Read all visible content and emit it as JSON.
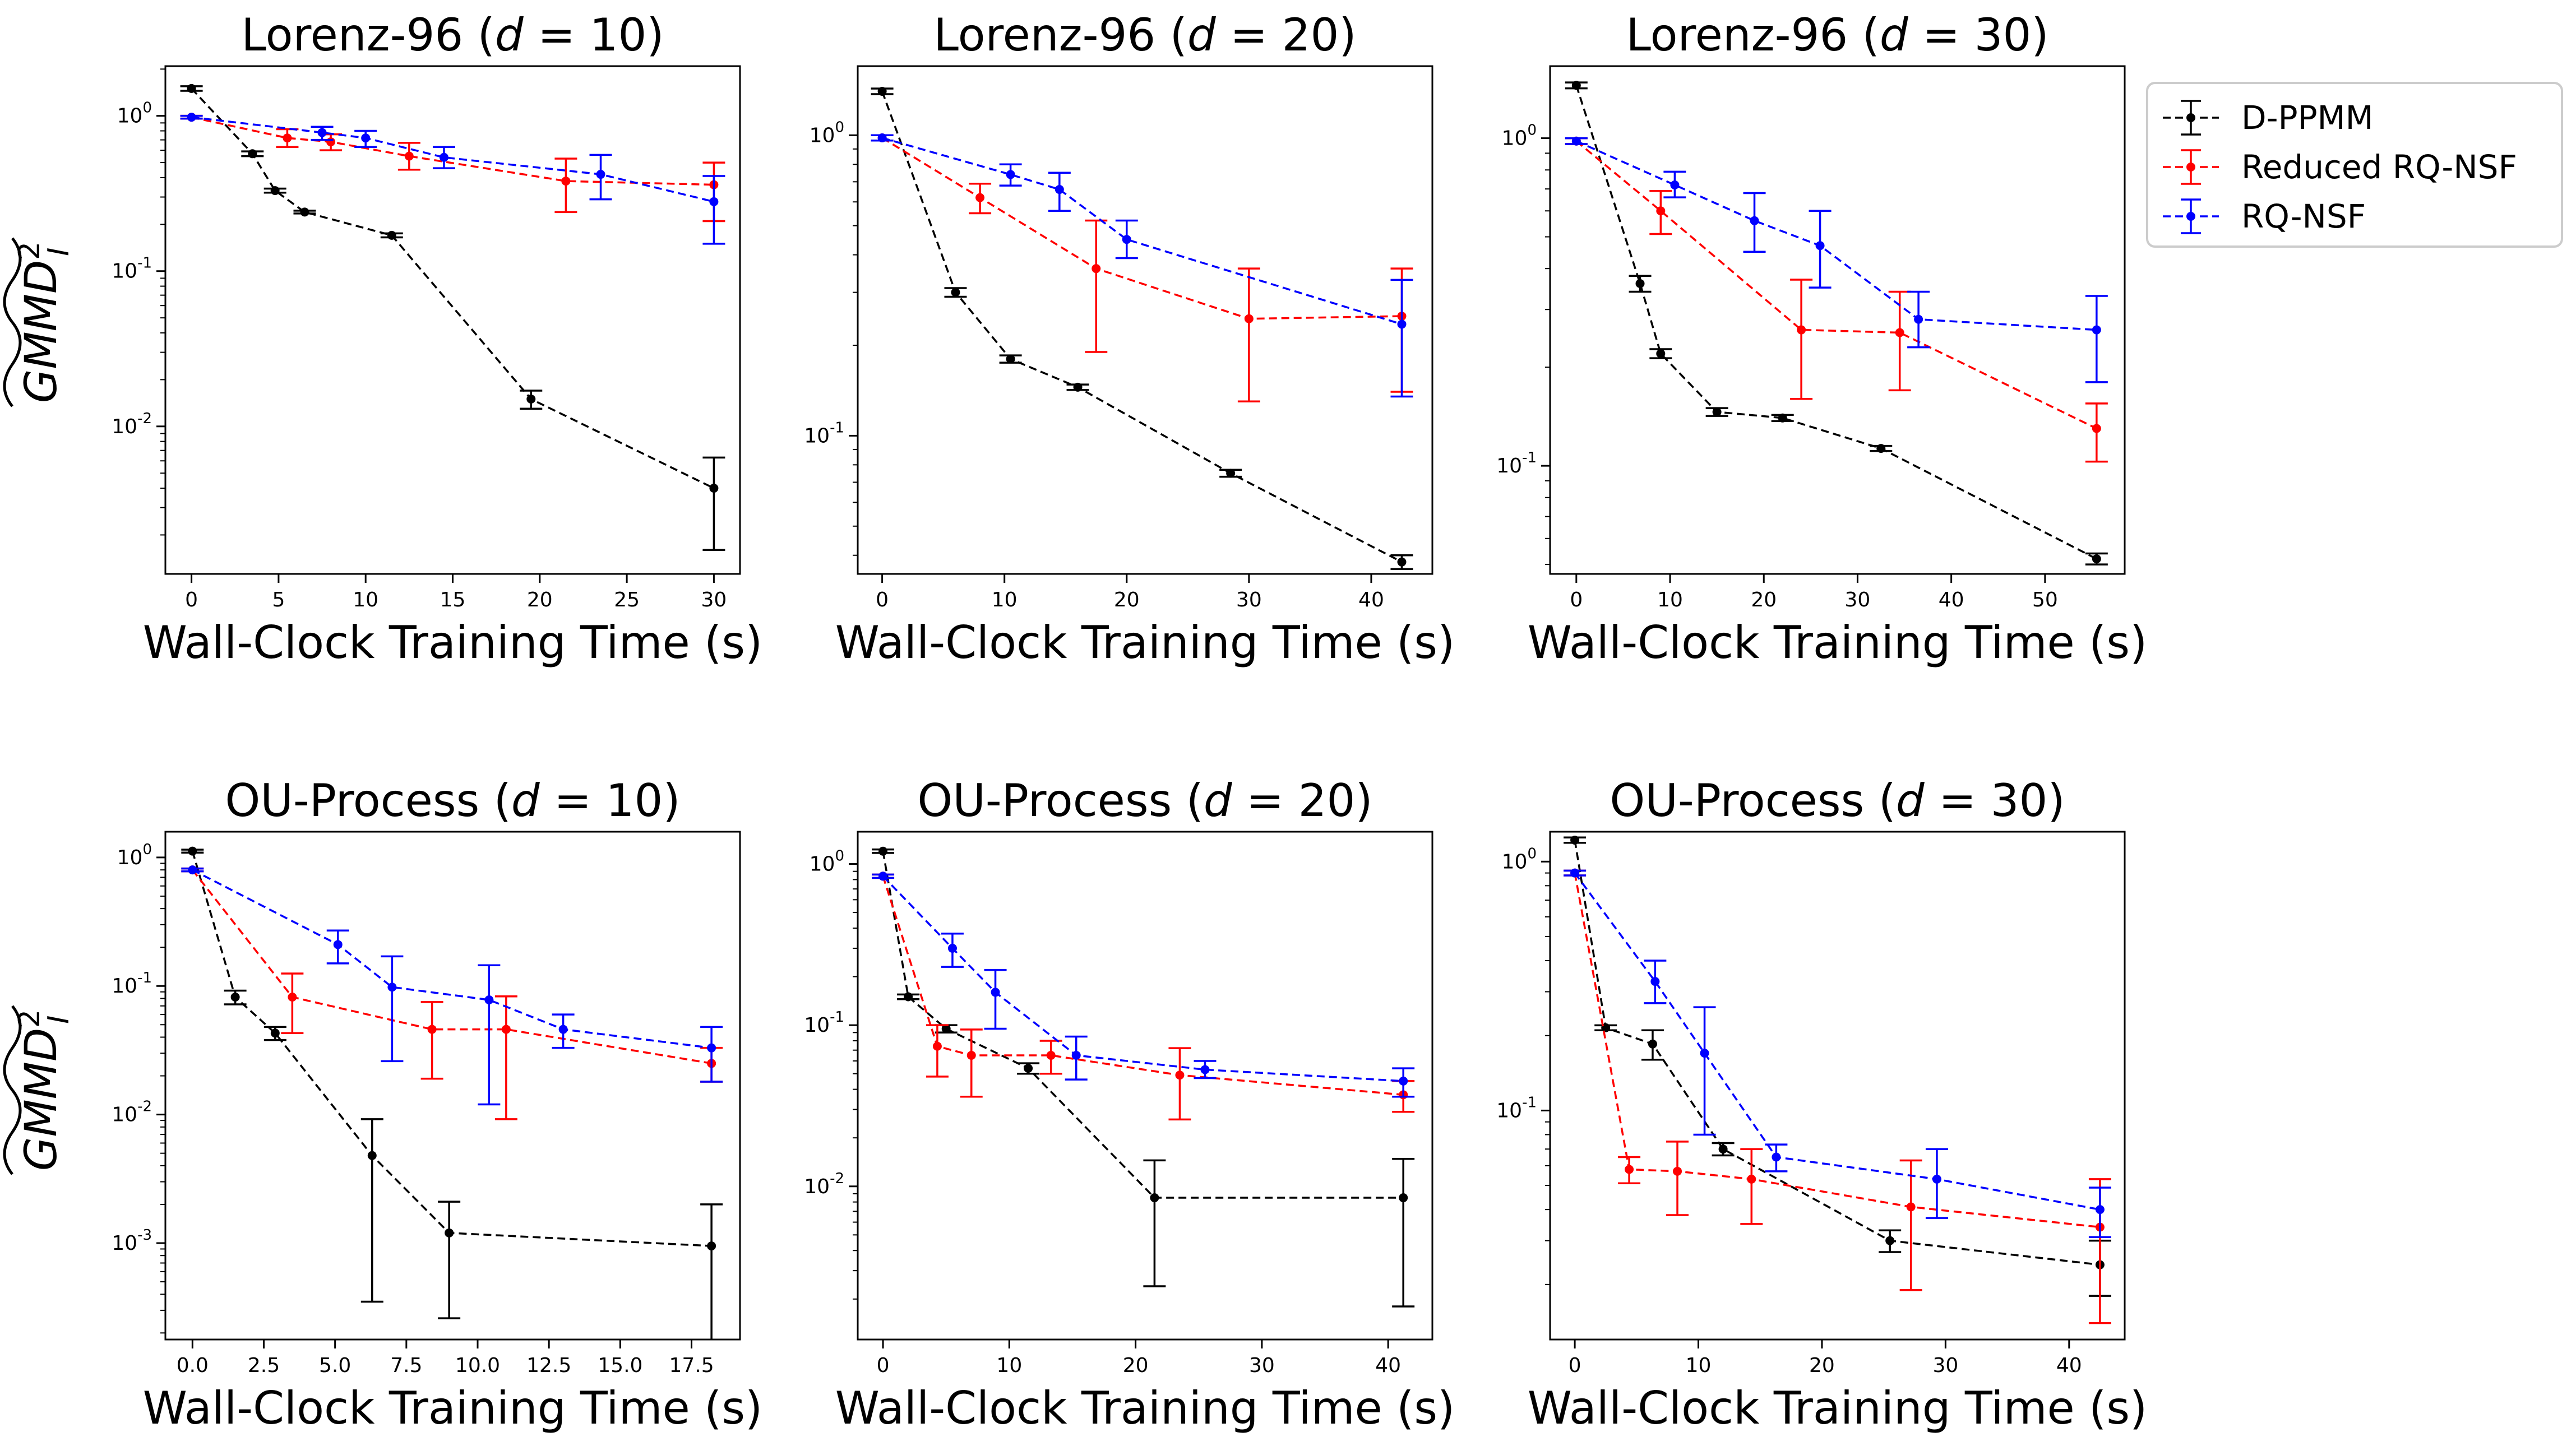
{
  "figure": {
    "ylabel": "GMMD²_I (tilde)",
    "legend": {
      "placement": "right of top-right panel",
      "entries": [
        {
          "name": "D-PPMM",
          "color": "#000000"
        },
        {
          "name": "Reduced RQ-NSF",
          "color": "#ff0000"
        },
        {
          "name": "RQ-NSF",
          "color": "#0000ff"
        }
      ]
    }
  },
  "chart_data": [
    {
      "type": "line",
      "title_prefix": "Lorenz-96",
      "title_suffix": "10",
      "xlabel": "Wall-Clock Training Time (s)",
      "xlim": [
        -1.5,
        31.5
      ],
      "xticks": [
        0,
        5,
        10,
        15,
        20,
        25,
        30
      ],
      "xtick_labels": [
        "0",
        "5",
        "10",
        "15",
        "20",
        "25",
        "30"
      ],
      "ylim_log10": [
        -2.95,
        0.32
      ],
      "yticks_exp": [
        -2,
        -1,
        0
      ],
      "series": [
        {
          "name": "D-PPMM",
          "color": "#000000",
          "x": [
            0,
            3.5,
            4.8,
            6.5,
            11.5,
            19.5,
            30
          ],
          "y": [
            1.5,
            0.57,
            0.33,
            0.24,
            0.17,
            0.015,
            0.004
          ],
          "err_lo": [
            1.45,
            0.55,
            0.32,
            0.235,
            0.165,
            0.013,
            0.0016
          ],
          "err_hi": [
            1.55,
            0.59,
            0.34,
            0.245,
            0.175,
            0.017,
            0.0063
          ]
        },
        {
          "name": "Reduced RQ-NSF",
          "color": "#ff0000",
          "x": [
            0,
            5.5,
            8.0,
            12.5,
            21.5,
            30
          ],
          "y": [
            0.98,
            0.72,
            0.68,
            0.55,
            0.38,
            0.36
          ],
          "err_lo": [
            0.96,
            0.63,
            0.6,
            0.45,
            0.24,
            0.21
          ],
          "err_hi": [
            1.0,
            0.82,
            0.76,
            0.67,
            0.53,
            0.5
          ]
        },
        {
          "name": "RQ-NSF",
          "color": "#0000ff",
          "x": [
            0,
            7.5,
            10.0,
            14.5,
            23.5,
            30
          ],
          "y": [
            0.98,
            0.78,
            0.72,
            0.54,
            0.42,
            0.28
          ],
          "err_lo": [
            0.96,
            0.7,
            0.63,
            0.46,
            0.29,
            0.15
          ],
          "err_hi": [
            1.0,
            0.85,
            0.8,
            0.63,
            0.56,
            0.41
          ]
        }
      ]
    },
    {
      "type": "line",
      "title_prefix": "Lorenz-96",
      "title_suffix": "20",
      "xlabel": "Wall-Clock Training Time (s)",
      "xlim": [
        -2,
        45
      ],
      "xticks": [
        0,
        10,
        20,
        30,
        40
      ],
      "xtick_labels": [
        "0",
        "10",
        "20",
        "30",
        "40"
      ],
      "ylim_log10": [
        -1.46,
        0.23
      ],
      "yticks_exp": [
        -1,
        0
      ],
      "series": [
        {
          "name": "D-PPMM",
          "color": "#000000",
          "x": [
            0,
            6,
            10.5,
            16,
            28.5,
            42.5
          ],
          "y": [
            1.4,
            0.3,
            0.18,
            0.145,
            0.075,
            0.038
          ],
          "err_lo": [
            1.37,
            0.29,
            0.175,
            0.142,
            0.073,
            0.036
          ],
          "err_hi": [
            1.43,
            0.31,
            0.185,
            0.148,
            0.077,
            0.04
          ]
        },
        {
          "name": "Reduced RQ-NSF",
          "color": "#ff0000",
          "x": [
            0,
            8,
            17.5,
            30,
            42.5
          ],
          "y": [
            0.98,
            0.62,
            0.36,
            0.245,
            0.25
          ],
          "err_lo": [
            0.96,
            0.55,
            0.19,
            0.13,
            0.14
          ],
          "err_hi": [
            1.0,
            0.69,
            0.52,
            0.36,
            0.36
          ]
        },
        {
          "name": "RQ-NSF",
          "color": "#0000ff",
          "x": [
            0,
            10.5,
            14.5,
            20,
            42.5
          ],
          "y": [
            0.98,
            0.74,
            0.66,
            0.45,
            0.235
          ],
          "err_lo": [
            0.96,
            0.68,
            0.56,
            0.39,
            0.135
          ],
          "err_hi": [
            1.0,
            0.8,
            0.75,
            0.52,
            0.33
          ]
        }
      ]
    },
    {
      "type": "line",
      "title_prefix": "Lorenz-96",
      "title_suffix": "30",
      "xlabel": "Wall-Clock Training Time (s)",
      "xlim": [
        -2.8,
        58.5
      ],
      "xticks": [
        0,
        10,
        20,
        30,
        40,
        50
      ],
      "xtick_labels": [
        "0",
        "10",
        "20",
        "30",
        "40",
        "50"
      ],
      "ylim_log10": [
        -1.33,
        0.22
      ],
      "yticks_exp": [
        -1,
        0
      ],
      "series": [
        {
          "name": "D-PPMM",
          "color": "#000000",
          "x": [
            0,
            6.8,
            9,
            15,
            22,
            32.5,
            55.5
          ],
          "y": [
            1.45,
            0.36,
            0.22,
            0.146,
            0.14,
            0.113,
            0.052
          ],
          "err_lo": [
            1.42,
            0.34,
            0.213,
            0.142,
            0.137,
            0.111,
            0.05
          ],
          "err_hi": [
            1.48,
            0.38,
            0.227,
            0.15,
            0.143,
            0.115,
            0.054
          ]
        },
        {
          "name": "Reduced RQ-NSF",
          "color": "#ff0000",
          "x": [
            0,
            9,
            24,
            34.5,
            55.5
          ],
          "y": [
            0.98,
            0.6,
            0.26,
            0.255,
            0.13
          ],
          "err_lo": [
            0.96,
            0.51,
            0.16,
            0.17,
            0.103
          ],
          "err_hi": [
            1.0,
            0.69,
            0.37,
            0.34,
            0.155
          ]
        },
        {
          "name": "RQ-NSF",
          "color": "#0000ff",
          "x": [
            0,
            10.5,
            19,
            26,
            36.5,
            55.5
          ],
          "y": [
            0.98,
            0.72,
            0.56,
            0.47,
            0.28,
            0.26
          ],
          "err_lo": [
            0.96,
            0.66,
            0.45,
            0.35,
            0.23,
            0.18
          ],
          "err_hi": [
            1.0,
            0.79,
            0.68,
            0.6,
            0.34,
            0.33
          ]
        }
      ]
    },
    {
      "type": "line",
      "title_prefix": "OU-Process",
      "title_suffix": "10",
      "xlabel": "Wall-Clock Training Time (s)",
      "xlim": [
        -0.95,
        19.2
      ],
      "xticks": [
        0,
        2.5,
        5,
        7.5,
        10,
        12.5,
        15,
        17.5
      ],
      "xtick_labels": [
        "0.0",
        "2.5",
        "5.0",
        "7.5",
        "10.0",
        "12.5",
        "15.0",
        "17.5"
      ],
      "ylim_log10": [
        -3.75,
        0.2
      ],
      "yticks_exp": [
        -3,
        -2,
        -1,
        0
      ],
      "series": [
        {
          "name": "D-PPMM",
          "color": "#000000",
          "x": [
            0,
            1.5,
            2.9,
            6.3,
            9,
            18.2
          ],
          "y": [
            1.12,
            0.082,
            0.043,
            0.0048,
            0.0012,
            0.00095
          ],
          "err_lo": [
            1.09,
            0.072,
            0.038,
            0.00035,
            0.00026,
            0.0001
          ],
          "err_hi": [
            1.15,
            0.092,
            0.048,
            0.0092,
            0.0021,
            0.002
          ]
        },
        {
          "name": "Reduced RQ-NSF",
          "color": "#ff0000",
          "x": [
            0,
            3.5,
            8.4,
            11,
            18.2
          ],
          "y": [
            0.8,
            0.082,
            0.046,
            0.046,
            0.025
          ],
          "err_lo": [
            0.78,
            0.043,
            0.019,
            0.0092,
            0.018
          ],
          "err_hi": [
            0.82,
            0.125,
            0.075,
            0.083,
            0.033
          ]
        },
        {
          "name": "RQ-NSF",
          "color": "#0000ff",
          "x": [
            0,
            5.1,
            7,
            10.4,
            13,
            18.2
          ],
          "y": [
            0.8,
            0.21,
            0.098,
            0.078,
            0.046,
            0.033
          ],
          "err_lo": [
            0.78,
            0.15,
            0.026,
            0.012,
            0.033,
            0.018
          ],
          "err_hi": [
            0.82,
            0.27,
            0.17,
            0.145,
            0.06,
            0.048
          ]
        }
      ]
    },
    {
      "type": "line",
      "title_prefix": "OU-Process",
      "title_suffix": "20",
      "xlabel": "Wall-Clock Training Time (s)",
      "xlim": [
        -2,
        43.5
      ],
      "xticks": [
        0,
        10,
        20,
        30,
        40
      ],
      "xtick_labels": [
        "0",
        "10",
        "20",
        "30",
        "40"
      ],
      "ylim_log10": [
        -2.95,
        0.2
      ],
      "yticks_exp": [
        -2,
        -1,
        0
      ],
      "series": [
        {
          "name": "D-PPMM",
          "color": "#000000",
          "x": [
            0,
            2,
            5,
            11.5,
            21.5,
            41.2
          ],
          "y": [
            1.2,
            0.15,
            0.095,
            0.054,
            0.0085,
            0.0085
          ],
          "err_lo": [
            1.17,
            0.145,
            0.09,
            0.05,
            0.0024,
            0.0018
          ],
          "err_hi": [
            1.23,
            0.155,
            0.1,
            0.058,
            0.0145,
            0.0148
          ]
        },
        {
          "name": "Reduced RQ-NSF",
          "color": "#ff0000",
          "x": [
            0,
            4.3,
            7,
            13.3,
            23.5,
            41.2
          ],
          "y": [
            0.84,
            0.074,
            0.065,
            0.065,
            0.049,
            0.037
          ],
          "err_lo": [
            0.82,
            0.048,
            0.036,
            0.05,
            0.026,
            0.029
          ],
          "err_hi": [
            0.86,
            0.1,
            0.094,
            0.08,
            0.072,
            0.045
          ]
        },
        {
          "name": "RQ-NSF",
          "color": "#0000ff",
          "x": [
            0,
            5.5,
            8.9,
            15.3,
            25.5,
            41.2
          ],
          "y": [
            0.84,
            0.3,
            0.16,
            0.065,
            0.053,
            0.045
          ],
          "err_lo": [
            0.82,
            0.23,
            0.095,
            0.046,
            0.047,
            0.036
          ],
          "err_hi": [
            0.86,
            0.37,
            0.22,
            0.085,
            0.06,
            0.054
          ]
        }
      ]
    },
    {
      "type": "line",
      "title_prefix": "OU-Process",
      "title_suffix": "30",
      "xlabel": "Wall-Clock Training Time (s)",
      "xlim": [
        -2,
        44.5
      ],
      "xticks": [
        0,
        10,
        20,
        30,
        40
      ],
      "xtick_labels": [
        "0",
        "10",
        "20",
        "30",
        "40"
      ],
      "ylim_log10": [
        -1.92,
        0.12
      ],
      "yticks_exp": [
        -1,
        0
      ],
      "series": [
        {
          "name": "D-PPMM",
          "color": "#000000",
          "x": [
            0,
            2.5,
            6.3,
            12,
            25.5,
            42.5
          ],
          "y": [
            1.22,
            0.215,
            0.185,
            0.07,
            0.03,
            0.024
          ],
          "err_lo": [
            1.19,
            0.21,
            0.16,
            0.066,
            0.027,
            0.018
          ],
          "err_hi": [
            1.25,
            0.22,
            0.21,
            0.074,
            0.033,
            0.03
          ]
        },
        {
          "name": "Reduced RQ-NSF",
          "color": "#ff0000",
          "x": [
            0,
            4.4,
            8.3,
            14.3,
            27.2,
            42.5
          ],
          "y": [
            0.9,
            0.058,
            0.057,
            0.053,
            0.041,
            0.034
          ],
          "err_lo": [
            0.88,
            0.051,
            0.038,
            0.035,
            0.019,
            0.014
          ],
          "err_hi": [
            0.92,
            0.065,
            0.075,
            0.07,
            0.063,
            0.053
          ]
        },
        {
          "name": "RQ-NSF",
          "color": "#0000ff",
          "x": [
            0,
            6.5,
            10.5,
            16.3,
            29.3,
            42.5
          ],
          "y": [
            0.9,
            0.33,
            0.17,
            0.065,
            0.053,
            0.04
          ],
          "err_lo": [
            0.88,
            0.27,
            0.08,
            0.057,
            0.037,
            0.031
          ],
          "err_hi": [
            0.92,
            0.4,
            0.26,
            0.073,
            0.07,
            0.049
          ]
        }
      ]
    }
  ]
}
